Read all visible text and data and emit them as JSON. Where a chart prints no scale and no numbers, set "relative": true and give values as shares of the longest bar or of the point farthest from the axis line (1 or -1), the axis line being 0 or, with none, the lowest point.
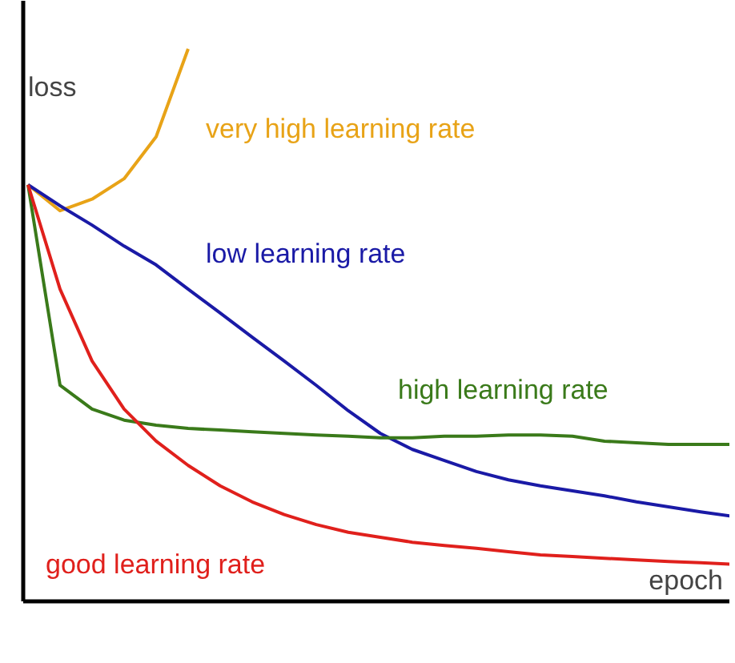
{
  "chart_data": {
    "type": "line",
    "relative": true,
    "xlabel": "epoch",
    "ylabel": "loss",
    "legend": false,
    "grid": false,
    "categories": [
      null,
      null,
      null,
      null,
      null,
      null,
      null,
      null,
      null,
      null,
      null,
      null,
      null,
      null,
      null,
      null,
      null,
      null,
      null,
      null,
      null,
      null,
      null
    ],
    "series": [
      {
        "name": "very high learning rate",
        "color": "#e8a317",
        "values": [
          0.754,
          0.707,
          0.728,
          0.765,
          0.841,
          1.0,
          null,
          null,
          null,
          null,
          null,
          null,
          null,
          null,
          null,
          null,
          null,
          null,
          null,
          null,
          null,
          null,
          null
        ]
      },
      {
        "name": "low learning rate",
        "color": "#1a1aa6",
        "values": [
          0.754,
          0.716,
          0.681,
          0.643,
          0.609,
          0.565,
          0.522,
          0.478,
          0.435,
          0.391,
          0.345,
          0.304,
          0.275,
          0.255,
          0.235,
          0.22,
          0.209,
          0.2,
          0.191,
          0.18,
          0.171,
          0.162,
          0.154
        ]
      },
      {
        "name": "high learning rate",
        "color": "#3a7a1a",
        "values": [
          0.754,
          0.391,
          0.348,
          0.328,
          0.319,
          0.313,
          0.31,
          0.307,
          0.304,
          0.301,
          0.299,
          0.296,
          0.296,
          0.299,
          0.299,
          0.301,
          0.301,
          0.299,
          0.29,
          0.287,
          0.284,
          0.284,
          0.284
        ]
      },
      {
        "name": "good learning rate",
        "color": "#e0201c",
        "values": [
          0.754,
          0.565,
          0.435,
          0.348,
          0.29,
          0.246,
          0.209,
          0.18,
          0.157,
          0.139,
          0.125,
          0.116,
          0.107,
          0.101,
          0.096,
          0.09,
          0.084,
          0.081,
          0.078,
          0.075,
          0.072,
          0.07,
          0.067
        ]
      }
    ]
  }
}
